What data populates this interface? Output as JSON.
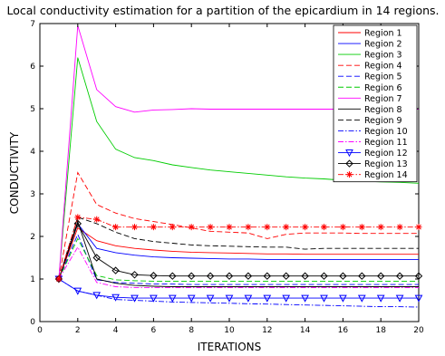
{
  "chart_data": {
    "type": "line",
    "title": "Local conductivity estimation for a partition of the epicardium in 14 regions.",
    "xlabel": "ITERATIONS",
    "ylabel": "CONDUCTIVITY",
    "xlim": [
      0,
      20
    ],
    "ylim": [
      0,
      7
    ],
    "xticks": [
      "0",
      "2",
      "4",
      "6",
      "8",
      "10",
      "12",
      "14",
      "16",
      "18",
      "20"
    ],
    "yticks": [
      "0",
      "1",
      "2",
      "3",
      "4",
      "5",
      "6",
      "7"
    ],
    "grid": false,
    "legend_position": "top-right",
    "x": [
      1,
      2,
      3,
      4,
      5,
      6,
      7,
      8,
      9,
      10,
      11,
      12,
      13,
      14,
      15,
      16,
      17,
      18,
      19,
      20
    ],
    "series": [
      {
        "name": "Region 1",
        "color": "#ff0000",
        "dash": "solid",
        "marker": "none",
        "values": [
          1.0,
          2.2,
          1.9,
          1.78,
          1.72,
          1.68,
          1.65,
          1.63,
          1.62,
          1.61,
          1.6,
          1.59,
          1.59,
          1.58,
          1.58,
          1.58,
          1.58,
          1.58,
          1.58,
          1.58
        ]
      },
      {
        "name": "Region 2",
        "color": "#0000ff",
        "dash": "solid",
        "marker": "none",
        "values": [
          1.0,
          2.3,
          1.72,
          1.62,
          1.56,
          1.52,
          1.5,
          1.49,
          1.48,
          1.47,
          1.47,
          1.46,
          1.46,
          1.46,
          1.46,
          1.46,
          1.46,
          1.46,
          1.46,
          1.46
        ]
      },
      {
        "name": "Region 3",
        "color": "#00cc00",
        "dash": "solid",
        "marker": "none",
        "values": [
          1.0,
          6.2,
          4.7,
          4.05,
          3.85,
          3.78,
          3.68,
          3.62,
          3.56,
          3.52,
          3.48,
          3.44,
          3.4,
          3.37,
          3.35,
          3.32,
          3.3,
          3.28,
          3.27,
          3.25
        ]
      },
      {
        "name": "Region 4",
        "color": "#ff0000",
        "dash": "dash",
        "marker": "none",
        "values": [
          1.0,
          3.5,
          2.75,
          2.55,
          2.42,
          2.35,
          2.28,
          2.2,
          2.12,
          2.1,
          2.08,
          1.95,
          2.05,
          2.08,
          2.08,
          2.08,
          2.07,
          2.07,
          2.07,
          2.07
        ]
      },
      {
        "name": "Region 5",
        "color": "#0000ff",
        "dash": "dash",
        "marker": "none",
        "values": [
          1.0,
          2.05,
          0.98,
          0.92,
          0.9,
          0.88,
          0.88,
          0.87,
          0.87,
          0.87,
          0.87,
          0.87,
          0.87,
          0.87,
          0.87,
          0.87,
          0.87,
          0.87,
          0.87,
          0.87
        ]
      },
      {
        "name": "Region 6",
        "color": "#00cc00",
        "dash": "dash",
        "marker": "none",
        "values": [
          1.0,
          1.95,
          1.08,
          0.98,
          0.96,
          0.95,
          0.95,
          0.95,
          0.95,
          0.95,
          0.95,
          0.95,
          0.95,
          0.95,
          0.95,
          0.95,
          0.95,
          0.95,
          0.95,
          0.95
        ]
      },
      {
        "name": "Region 7",
        "color": "#ff00ff",
        "dash": "solid",
        "marker": "none",
        "values": [
          1.0,
          6.95,
          5.45,
          5.05,
          4.92,
          4.97,
          4.98,
          5.0,
          4.99,
          4.99,
          4.99,
          4.99,
          4.99,
          4.99,
          4.99,
          4.99,
          4.99,
          4.99,
          4.99,
          4.99
        ]
      },
      {
        "name": "Region 8",
        "color": "#000000",
        "dash": "solid",
        "marker": "none",
        "values": [
          1.0,
          2.35,
          1.0,
          0.9,
          0.85,
          0.83,
          0.82,
          0.82,
          0.82,
          0.82,
          0.82,
          0.82,
          0.82,
          0.82,
          0.82,
          0.82,
          0.82,
          0.82,
          0.82,
          0.82
        ]
      },
      {
        "name": "Region 9",
        "color": "#000000",
        "dash": "dash",
        "marker": "none",
        "values": [
          1.0,
          2.45,
          2.3,
          2.1,
          1.95,
          1.88,
          1.84,
          1.8,
          1.78,
          1.77,
          1.76,
          1.75,
          1.75,
          1.7,
          1.72,
          1.72,
          1.72,
          1.72,
          1.72,
          1.72
        ]
      },
      {
        "name": "Region 10",
        "color": "#0000ff",
        "dash": "dashdot",
        "marker": "none",
        "values": [
          1.0,
          0.72,
          0.62,
          0.52,
          0.5,
          0.48,
          0.46,
          0.45,
          0.44,
          0.43,
          0.42,
          0.41,
          0.4,
          0.39,
          0.38,
          0.37,
          0.36,
          0.35,
          0.35,
          0.34
        ]
      },
      {
        "name": "Region 11",
        "color": "#ff00ff",
        "dash": "dashdot",
        "marker": "none",
        "values": [
          1.0,
          1.75,
          0.92,
          0.82,
          0.8,
          0.8,
          0.8,
          0.8,
          0.8,
          0.8,
          0.8,
          0.8,
          0.8,
          0.8,
          0.8,
          0.8,
          0.8,
          0.8,
          0.8,
          0.8
        ]
      },
      {
        "name": "Region 12",
        "color": "#0000ff",
        "dash": "solid",
        "marker": "triangle-down",
        "values": [
          1.0,
          0.72,
          0.62,
          0.57,
          0.55,
          0.55,
          0.55,
          0.55,
          0.55,
          0.55,
          0.55,
          0.55,
          0.55,
          0.55,
          0.55,
          0.55,
          0.55,
          0.55,
          0.55,
          0.55
        ]
      },
      {
        "name": "Region 13",
        "color": "#000000",
        "dash": "solid",
        "marker": "diamond",
        "values": [
          1.0,
          2.3,
          1.5,
          1.2,
          1.1,
          1.08,
          1.07,
          1.07,
          1.07,
          1.07,
          1.07,
          1.07,
          1.07,
          1.07,
          1.07,
          1.07,
          1.07,
          1.07,
          1.07,
          1.07
        ]
      },
      {
        "name": "Region 14",
        "color": "#ff0000",
        "dash": "dashdot",
        "marker": "asterisk",
        "values": [
          1.0,
          2.45,
          2.4,
          2.22,
          2.22,
          2.22,
          2.22,
          2.22,
          2.22,
          2.22,
          2.22,
          2.22,
          2.22,
          2.22,
          2.22,
          2.22,
          2.22,
          2.22,
          2.22,
          2.22
        ]
      }
    ]
  }
}
